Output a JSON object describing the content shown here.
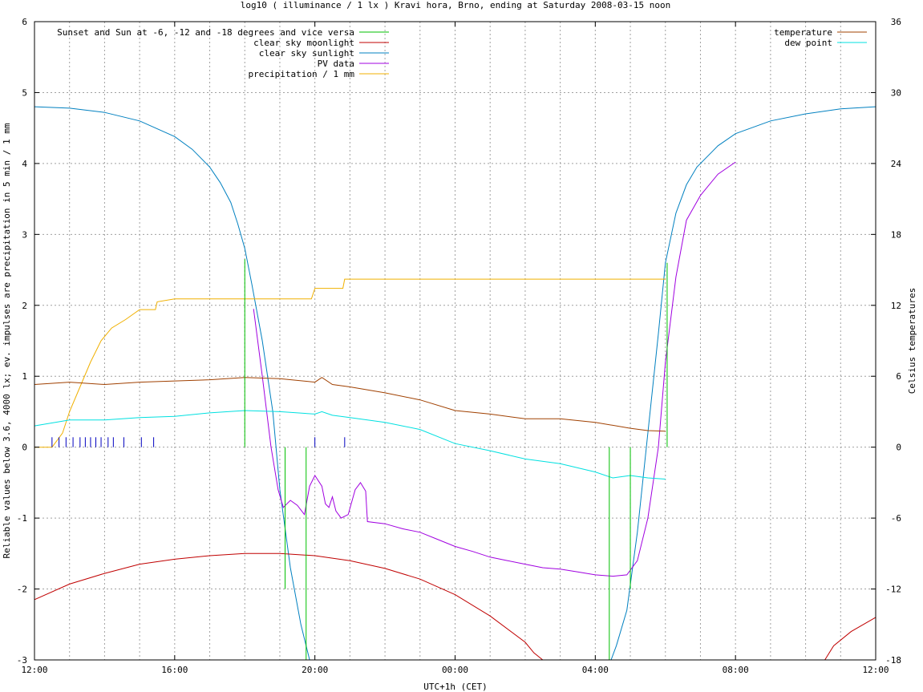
{
  "chart_data": {
    "type": "line",
    "title": "log10 ( illuminance / 1 lx ) Kravi hora, Brno, ending at Saturday 2008-03-15 noon",
    "xlabel": "UTC+1h (CET)",
    "ylabel": "Reliable values below 3.6, 4000 lx; ev. impulses are precipitation in 5 min / 1 mm",
    "y2label": "Celsius temperatures",
    "x_unit": "hours after 12:00",
    "xlim": [
      0,
      24
    ],
    "ylim": [
      -3,
      6
    ],
    "y2lim": [
      -18,
      36
    ],
    "grid": true,
    "x_ticks": [
      {
        "v": 0,
        "label": "12:00"
      },
      {
        "v": 4,
        "label": "16:00"
      },
      {
        "v": 8,
        "label": "20:00"
      },
      {
        "v": 12,
        "label": "00:00"
      },
      {
        "v": 16,
        "label": "04:00"
      },
      {
        "v": 20,
        "label": "08:00"
      },
      {
        "v": 24,
        "label": "12:00"
      }
    ],
    "y_ticks": [
      {
        "v": -3,
        "label": "-3"
      },
      {
        "v": -2,
        "label": "-2"
      },
      {
        "v": -1,
        "label": "-1"
      },
      {
        "v": 0,
        "label": "0"
      },
      {
        "v": 1,
        "label": "1"
      },
      {
        "v": 2,
        "label": "2"
      },
      {
        "v": 3,
        "label": "3"
      },
      {
        "v": 4,
        "label": "4"
      },
      {
        "v": 5,
        "label": "5"
      },
      {
        "v": 6,
        "label": "6"
      }
    ],
    "y2_ticks": [
      {
        "v": -18,
        "label": "-18"
      },
      {
        "v": -12,
        "label": "-12"
      },
      {
        "v": -6,
        "label": "-6"
      },
      {
        "v": 0,
        "label": "0"
      },
      {
        "v": 6,
        "label": "6"
      },
      {
        "v": 12,
        "label": "12"
      },
      {
        "v": 18,
        "label": "18"
      },
      {
        "v": 24,
        "label": "24"
      },
      {
        "v": 30,
        "label": "30"
      },
      {
        "v": 36,
        "label": "36"
      }
    ],
    "legend_left": [
      {
        "label": "Sunset and Sun at -6, -12 and -18 degrees and vice versa",
        "color": "#00c000"
      },
      {
        "label": "clear sky moonlight",
        "color": "#c00000"
      },
      {
        "label": "clear sky sunlight",
        "color": "#0080c0"
      },
      {
        "label": "PV data",
        "color": "#a000e0"
      },
      {
        "label": "precipitation / 1 mm",
        "color": "#f0b000"
      }
    ],
    "legend_right": [
      {
        "label": "temperature",
        "color": "#a04000"
      },
      {
        "label": "dew point",
        "color": "#00e0e0"
      }
    ],
    "series": [
      {
        "name": "clear sky sunlight",
        "color": "#0080c0",
        "axis": "y",
        "points": [
          [
            0,
            4.8
          ],
          [
            1,
            4.78
          ],
          [
            2,
            4.72
          ],
          [
            3,
            4.6
          ],
          [
            4,
            4.38
          ],
          [
            4.5,
            4.2
          ],
          [
            5,
            3.95
          ],
          [
            5.3,
            3.73
          ],
          [
            5.6,
            3.45
          ],
          [
            5.8,
            3.15
          ],
          [
            6.0,
            2.8
          ],
          [
            6.2,
            2.3
          ],
          [
            6.5,
            1.5
          ],
          [
            6.8,
            0.5
          ],
          [
            7.0,
            -0.6
          ],
          [
            7.3,
            -1.7
          ],
          [
            7.6,
            -2.5
          ],
          [
            7.85,
            -3.0
          ],
          [
            16.45,
            -3.0
          ],
          [
            16.6,
            -2.8
          ],
          [
            16.9,
            -2.3
          ],
          [
            17.2,
            -1.2
          ],
          [
            17.5,
            0.2
          ],
          [
            17.8,
            1.6
          ],
          [
            18.0,
            2.6
          ],
          [
            18.3,
            3.3
          ],
          [
            18.6,
            3.7
          ],
          [
            18.9,
            3.95
          ],
          [
            19.5,
            4.25
          ],
          [
            20,
            4.42
          ],
          [
            21,
            4.6
          ],
          [
            22,
            4.7
          ],
          [
            23,
            4.77
          ],
          [
            24,
            4.8
          ]
        ]
      },
      {
        "name": "clear sky moonlight",
        "color": "#c00000",
        "axis": "y",
        "points": [
          [
            0,
            -2.15
          ],
          [
            1,
            -1.93
          ],
          [
            2,
            -1.78
          ],
          [
            3,
            -1.65
          ],
          [
            4,
            -1.58
          ],
          [
            5,
            -1.53
          ],
          [
            6,
            -1.5
          ],
          [
            7,
            -1.5
          ],
          [
            8,
            -1.53
          ],
          [
            9,
            -1.6
          ],
          [
            10,
            -1.71
          ],
          [
            11,
            -1.86
          ],
          [
            12,
            -2.08
          ],
          [
            13,
            -2.38
          ],
          [
            14,
            -2.75
          ],
          [
            14.25,
            -2.9
          ],
          [
            14.5,
            -3.0
          ],
          [
            22.55,
            -3.0
          ],
          [
            22.8,
            -2.8
          ],
          [
            23.3,
            -2.6
          ],
          [
            24,
            -2.4
          ]
        ]
      },
      {
        "name": "PV data",
        "color": "#a000e0",
        "axis": "y",
        "points": [
          [
            6.25,
            1.95
          ],
          [
            6.5,
            1.0
          ],
          [
            6.75,
            0.0
          ],
          [
            6.95,
            -0.6
          ],
          [
            7.1,
            -0.85
          ],
          [
            7.3,
            -0.75
          ],
          [
            7.5,
            -0.82
          ],
          [
            7.7,
            -0.95
          ],
          [
            7.85,
            -0.55
          ],
          [
            8.0,
            -0.4
          ],
          [
            8.2,
            -0.55
          ],
          [
            8.3,
            -0.8
          ],
          [
            8.4,
            -0.85
          ],
          [
            8.5,
            -0.7
          ],
          [
            8.6,
            -0.9
          ],
          [
            8.75,
            -1.0
          ],
          [
            8.95,
            -0.95
          ],
          [
            9.15,
            -0.6
          ],
          [
            9.3,
            -0.5
          ],
          [
            9.45,
            -0.62
          ],
          [
            9.5,
            -1.05
          ],
          [
            10,
            -1.08
          ],
          [
            10.5,
            -1.15
          ],
          [
            11,
            -1.2
          ],
          [
            11.5,
            -1.3
          ],
          [
            12,
            -1.4
          ],
          [
            12.5,
            -1.47
          ],
          [
            13,
            -1.55
          ],
          [
            13.5,
            -1.6
          ],
          [
            14,
            -1.65
          ],
          [
            14.5,
            -1.7
          ],
          [
            15,
            -1.72
          ],
          [
            15.5,
            -1.76
          ],
          [
            16,
            -1.8
          ],
          [
            16.5,
            -1.82
          ],
          [
            16.9,
            -1.8
          ],
          [
            17.2,
            -1.6
          ],
          [
            17.5,
            -1.0
          ],
          [
            17.8,
            0.0
          ],
          [
            18.0,
            1.2
          ],
          [
            18.3,
            2.4
          ],
          [
            18.6,
            3.2
          ],
          [
            19.0,
            3.55
          ],
          [
            19.5,
            3.85
          ],
          [
            20.0,
            4.02
          ]
        ]
      },
      {
        "name": "precipitation / 1 mm",
        "color": "#f0b000",
        "axis": "y",
        "points": [
          [
            0,
            0
          ],
          [
            0.5,
            0
          ],
          [
            0.8,
            0.2
          ],
          [
            1.0,
            0.5
          ],
          [
            1.3,
            0.85
          ],
          [
            1.6,
            1.2
          ],
          [
            1.9,
            1.5
          ],
          [
            2.2,
            1.68
          ],
          [
            2.6,
            1.8
          ],
          [
            3.0,
            1.94
          ],
          [
            3.45,
            1.94
          ],
          [
            3.5,
            2.05
          ],
          [
            4.0,
            2.09
          ],
          [
            5.0,
            2.09
          ],
          [
            6.0,
            2.09
          ],
          [
            7.0,
            2.09
          ],
          [
            7.9,
            2.09
          ],
          [
            8.0,
            2.24
          ],
          [
            8.8,
            2.24
          ],
          [
            8.85,
            2.37
          ],
          [
            12,
            2.37
          ],
          [
            15,
            2.37
          ],
          [
            17.5,
            2.37
          ],
          [
            18.0,
            2.37
          ]
        ]
      },
      {
        "name": "temperature",
        "color": "#a04000",
        "axis": "y2",
        "points": [
          [
            0,
            5.3
          ],
          [
            1,
            5.5
          ],
          [
            2,
            5.3
          ],
          [
            3,
            5.5
          ],
          [
            4,
            5.6
          ],
          [
            5,
            5.7
          ],
          [
            6,
            5.9
          ],
          [
            7,
            5.8
          ],
          [
            8,
            5.5
          ],
          [
            8.2,
            5.9
          ],
          [
            8.5,
            5.3
          ],
          [
            9,
            5.1
          ],
          [
            10,
            4.6
          ],
          [
            11,
            4.0
          ],
          [
            12,
            3.1
          ],
          [
            13,
            2.8
          ],
          [
            14,
            2.4
          ],
          [
            15,
            2.4
          ],
          [
            16,
            2.1
          ],
          [
            17,
            1.6
          ],
          [
            17.5,
            1.4
          ],
          [
            18,
            1.35
          ]
        ]
      },
      {
        "name": "dew point",
        "color": "#00e0e0",
        "axis": "y2",
        "points": [
          [
            0,
            1.8
          ],
          [
            1,
            2.3
          ],
          [
            2,
            2.3
          ],
          [
            3,
            2.5
          ],
          [
            4,
            2.6
          ],
          [
            5,
            2.9
          ],
          [
            6,
            3.1
          ],
          [
            7,
            3.0
          ],
          [
            8,
            2.8
          ],
          [
            8.2,
            3.0
          ],
          [
            8.5,
            2.7
          ],
          [
            9,
            2.5
          ],
          [
            10,
            2.1
          ],
          [
            11,
            1.5
          ],
          [
            12,
            0.3
          ],
          [
            13,
            -0.3
          ],
          [
            14,
            -1.0
          ],
          [
            15,
            -1.4
          ],
          [
            16,
            -2.1
          ],
          [
            16.5,
            -2.6
          ],
          [
            17,
            -2.4
          ],
          [
            17.5,
            -2.6
          ],
          [
            18,
            -2.7
          ]
        ]
      }
    ],
    "vertical_markers": {
      "name": "Sunset and Sun at -6, -12 and -18 degrees and vice versa",
      "color": "#00c000",
      "lines": [
        {
          "x": 6.0,
          "y_from": 0,
          "y_to": 2.65
        },
        {
          "x": 7.15,
          "y_from": 0,
          "y_to": -2.0
        },
        {
          "x": 7.75,
          "y_from": 0,
          "y_to": -3.0
        },
        {
          "x": 16.4,
          "y_from": 0,
          "y_to": -3.0
        },
        {
          "x": 17.0,
          "y_from": 0,
          "y_to": -2.0
        },
        {
          "x": 18.05,
          "y_from": 0,
          "y_to": 2.6
        }
      ]
    },
    "impulses": {
      "name": "precipitation impulses",
      "color": "#0000c0",
      "bars": [
        {
          "x": 0.5,
          "h": 0.14
        },
        {
          "x": 0.7,
          "h": 0.14
        },
        {
          "x": 0.9,
          "h": 0.14
        },
        {
          "x": 1.1,
          "h": 0.14
        },
        {
          "x": 1.3,
          "h": 0.14
        },
        {
          "x": 1.45,
          "h": 0.14
        },
        {
          "x": 1.6,
          "h": 0.14
        },
        {
          "x": 1.75,
          "h": 0.14
        },
        {
          "x": 1.9,
          "h": 0.14
        },
        {
          "x": 2.1,
          "h": 0.14
        },
        {
          "x": 2.25,
          "h": 0.14
        },
        {
          "x": 2.55,
          "h": 0.14
        },
        {
          "x": 3.05,
          "h": 0.14
        },
        {
          "x": 3.4,
          "h": 0.14
        },
        {
          "x": 8.0,
          "h": 0.14
        },
        {
          "x": 8.85,
          "h": 0.14
        }
      ]
    }
  }
}
